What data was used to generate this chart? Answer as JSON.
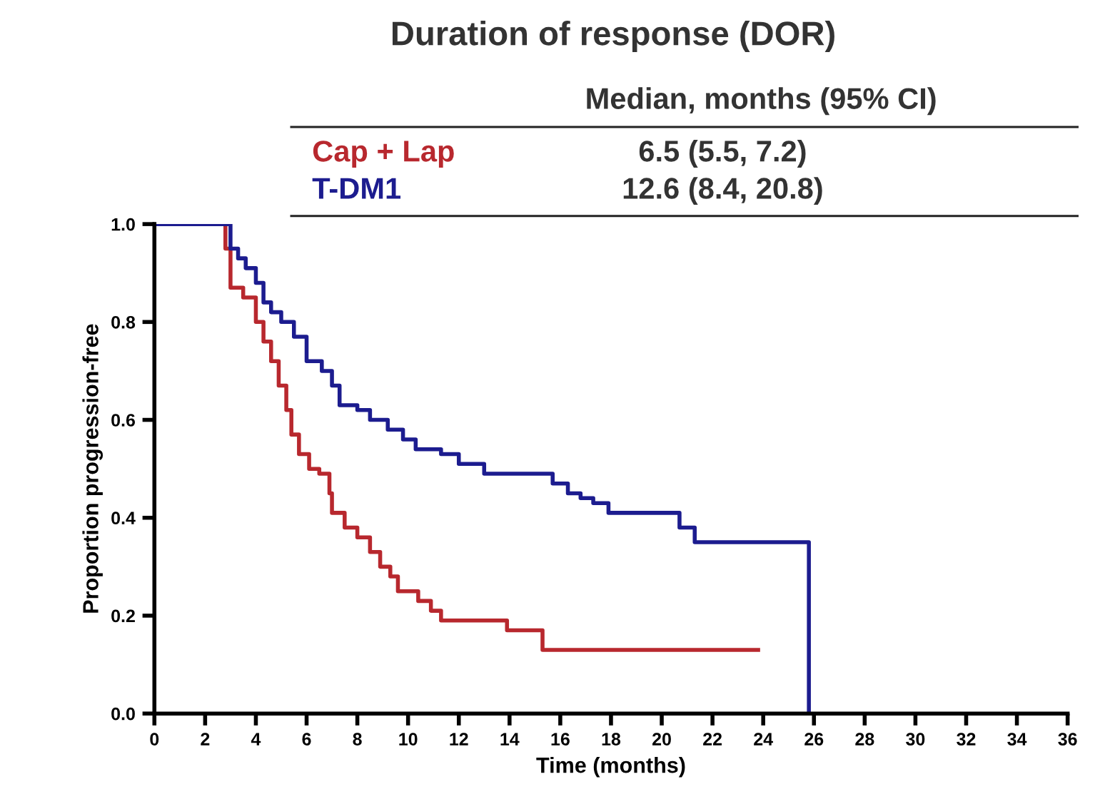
{
  "chart_data": {
    "type": "step",
    "title": "Duration of response (DOR)",
    "xlabel": "Time (months)",
    "ylabel": "Proportion progression-free",
    "annotations": [
      "Median, months (95% CI)",
      "6.5 (5.5, 7.2)",
      "12.6 (8.4, 20.8)"
    ],
    "xlim": [
      0,
      36
    ],
    "xticks": [
      0,
      2,
      4,
      6,
      8,
      10,
      12,
      14,
      16,
      18,
      20,
      22,
      24,
      26,
      28,
      30,
      32,
      34,
      36
    ],
    "ylim": [
      0,
      1.0
    ],
    "yticks": [
      {
        "value": 0,
        "label": "0.0"
      },
      {
        "value": 0.2,
        "label": "0.2"
      },
      {
        "value": 0.4,
        "label": "0.4"
      },
      {
        "value": 0.6,
        "label": "0.6"
      },
      {
        "value": 0.8,
        "label": "0.8"
      },
      {
        "value": 1.0,
        "label": "1.0"
      }
    ],
    "grid": false,
    "series": [
      {
        "name": "Cap + Lap",
        "color": "#b8282e",
        "x": [
          0,
          2.6,
          2.8,
          3.0,
          3.5,
          4.0,
          4.3,
          4.6,
          4.9,
          5.2,
          5.4,
          5.7,
          6.1,
          6.5,
          6.9,
          7.0,
          7.5,
          8.0,
          8.5,
          8.9,
          9.3,
          9.6,
          10.4,
          10.9,
          11.3,
          13.9,
          15.3,
          23.8
        ],
        "values": [
          1.0,
          1.0,
          0.95,
          0.87,
          0.85,
          0.8,
          0.76,
          0.72,
          0.67,
          0.62,
          0.57,
          0.53,
          0.5,
          0.49,
          0.45,
          0.41,
          0.38,
          0.36,
          0.33,
          0.3,
          0.28,
          0.25,
          0.23,
          0.21,
          0.19,
          0.17,
          0.13,
          0.13
        ]
      },
      {
        "name": "T-DM1",
        "color": "#1c1c8f",
        "x": [
          0,
          2.8,
          3.0,
          3.3,
          3.6,
          4.0,
          4.3,
          4.6,
          5.0,
          5.5,
          6.0,
          6.6,
          7.0,
          7.3,
          8.0,
          8.5,
          9.2,
          9.8,
          10.3,
          11.3,
          12.0,
          13.0,
          15.7,
          16.3,
          16.8,
          17.3,
          17.9,
          20.7,
          21.3,
          25.8,
          25.8
        ],
        "values": [
          1.0,
          1.0,
          0.95,
          0.93,
          0.91,
          0.88,
          0.84,
          0.82,
          0.8,
          0.77,
          0.72,
          0.7,
          0.67,
          0.63,
          0.62,
          0.6,
          0.58,
          0.56,
          0.54,
          0.53,
          0.51,
          0.49,
          0.47,
          0.45,
          0.44,
          0.43,
          0.41,
          0.38,
          0.35,
          0.35,
          0.0
        ]
      }
    ]
  }
}
